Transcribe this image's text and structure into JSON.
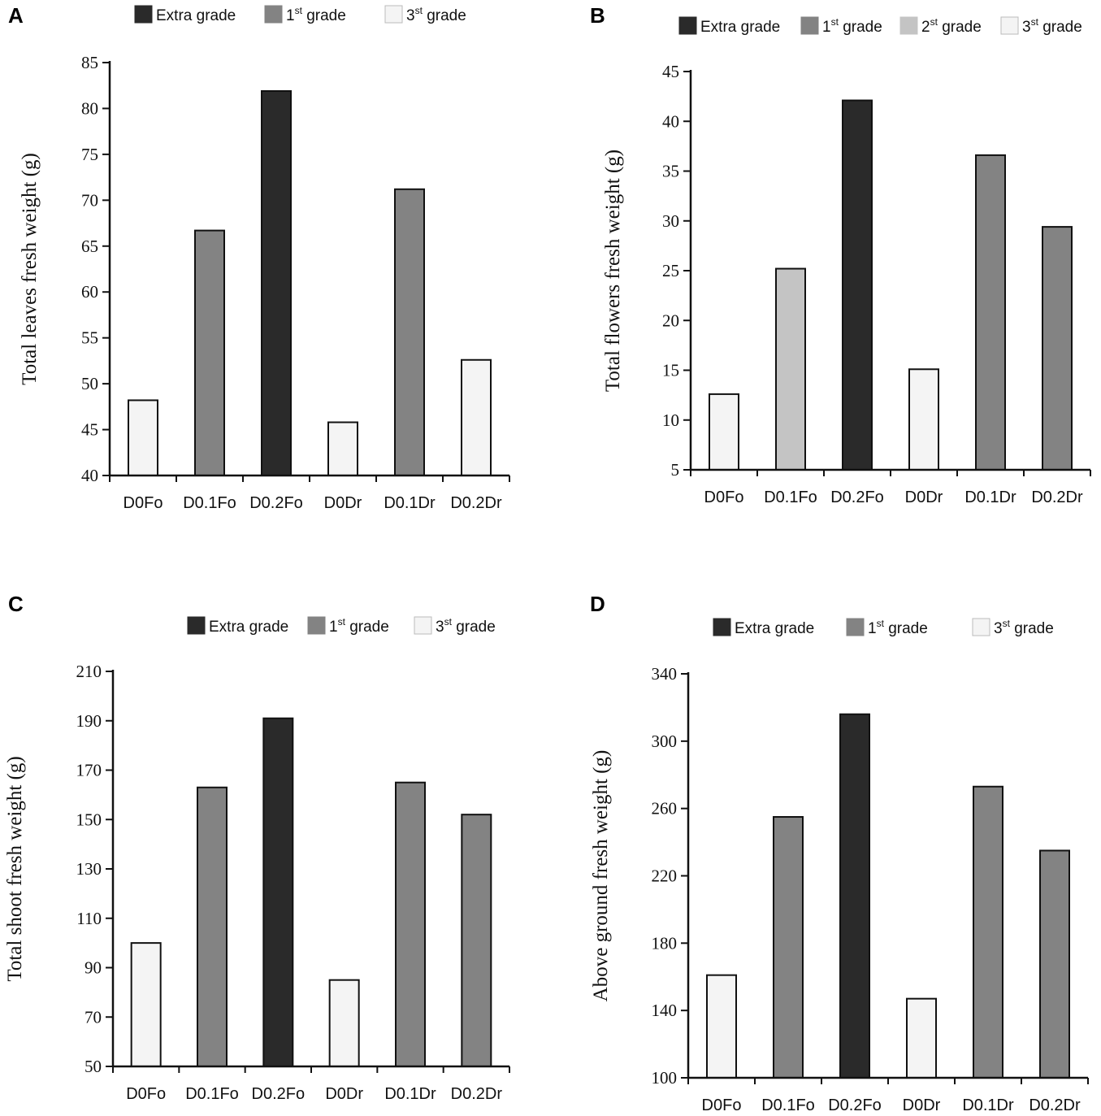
{
  "colors": {
    "Extra grade": "#2a2a2a",
    "1st grade": "#838383",
    "2st grade": "#c4c4c4",
    "3st grade": "#f4f4f4"
  },
  "chart_data": [
    {
      "panel": "A",
      "type": "bar",
      "ylabel": "Total leaves fresh weight (g)",
      "xlabel": "",
      "ylim": [
        40,
        85
      ],
      "yticks": [
        40,
        45,
        50,
        55,
        60,
        65,
        70,
        75,
        80,
        85
      ],
      "categories": [
        "D0Fo",
        "D0.1Fo",
        "D0.2Fo",
        "D0Dr",
        "D0.1Dr",
        "D0.2Dr"
      ],
      "values": [
        48.2,
        66.7,
        81.9,
        45.8,
        71.2,
        52.6
      ],
      "grades": [
        "3st grade",
        "1st grade",
        "Extra grade",
        "3st grade",
        "1st grade",
        "3st grade"
      ],
      "legend": [
        {
          "key": "Extra grade",
          "base": "Extra grade",
          "sup": ""
        },
        {
          "key": "1st grade",
          "base": "1",
          "sup": "st",
          "rest": " grade"
        },
        {
          "key": "3st grade",
          "base": "3",
          "sup": "st",
          "rest": " grade"
        }
      ]
    },
    {
      "panel": "B",
      "type": "bar",
      "ylabel": "Total flowers fresh weight (g)",
      "xlabel": "",
      "ylim": [
        5,
        45
      ],
      "yticks": [
        5,
        10,
        15,
        20,
        25,
        30,
        35,
        40,
        45
      ],
      "categories": [
        "D0Fo",
        "D0.1Fo",
        "D0.2Fo",
        "D0Dr",
        "D0.1Dr",
        "D0.2Dr"
      ],
      "values": [
        12.6,
        25.2,
        42.1,
        15.1,
        36.6,
        29.4
      ],
      "grades": [
        "3st grade",
        "2st grade",
        "Extra grade",
        "3st grade",
        "1st grade",
        "1st grade"
      ],
      "legend": [
        {
          "key": "Extra grade",
          "base": "Extra grade",
          "sup": ""
        },
        {
          "key": "1st grade",
          "base": "1",
          "sup": "st",
          "rest": " grade"
        },
        {
          "key": "2st grade",
          "base": "2",
          "sup": "st",
          "rest": " grade"
        },
        {
          "key": "3st grade",
          "base": "3",
          "sup": "st",
          "rest": " grade"
        }
      ]
    },
    {
      "panel": "C",
      "type": "bar",
      "ylabel": "Total shoot fresh weight (g)",
      "xlabel": "",
      "ylim": [
        50,
        210
      ],
      "yticks": [
        50,
        70,
        90,
        110,
        130,
        150,
        170,
        190,
        210
      ],
      "categories": [
        "D0Fo",
        "D0.1Fo",
        "D0.2Fo",
        "D0Dr",
        "D0.1Dr",
        "D0.2Dr"
      ],
      "values": [
        100,
        163,
        191,
        85,
        165,
        152
      ],
      "grades": [
        "3st grade",
        "1st grade",
        "Extra grade",
        "3st grade",
        "1st grade",
        "1st grade"
      ],
      "legend": [
        {
          "key": "Extra grade",
          "base": "Extra grade",
          "sup": ""
        },
        {
          "key": "1st grade",
          "base": "1",
          "sup": "st",
          "rest": " grade"
        },
        {
          "key": "3st grade",
          "base": "3",
          "sup": "st",
          "rest": " grade"
        }
      ]
    },
    {
      "panel": "D",
      "type": "bar",
      "ylabel": "Above ground  fresh weight (g)",
      "xlabel": "",
      "ylim": [
        100,
        340
      ],
      "yticks": [
        100,
        140,
        180,
        220,
        260,
        300,
        340
      ],
      "categories": [
        "D0Fo",
        "D0.1Fo",
        "D0.2Fo",
        "D0Dr",
        "D0.1Dr",
        "D0.2Dr"
      ],
      "values": [
        161,
        255,
        316,
        147,
        273,
        235
      ],
      "grades": [
        "3st grade",
        "1st grade",
        "Extra grade",
        "3st grade",
        "1st grade",
        "1st grade"
      ],
      "legend": [
        {
          "key": "Extra grade",
          "base": "Extra grade",
          "sup": ""
        },
        {
          "key": "1st grade",
          "base": "1",
          "sup": "st",
          "rest": " grade"
        },
        {
          "key": "3st grade",
          "base": "3",
          "sup": "st",
          "rest": " grade"
        }
      ]
    }
  ]
}
